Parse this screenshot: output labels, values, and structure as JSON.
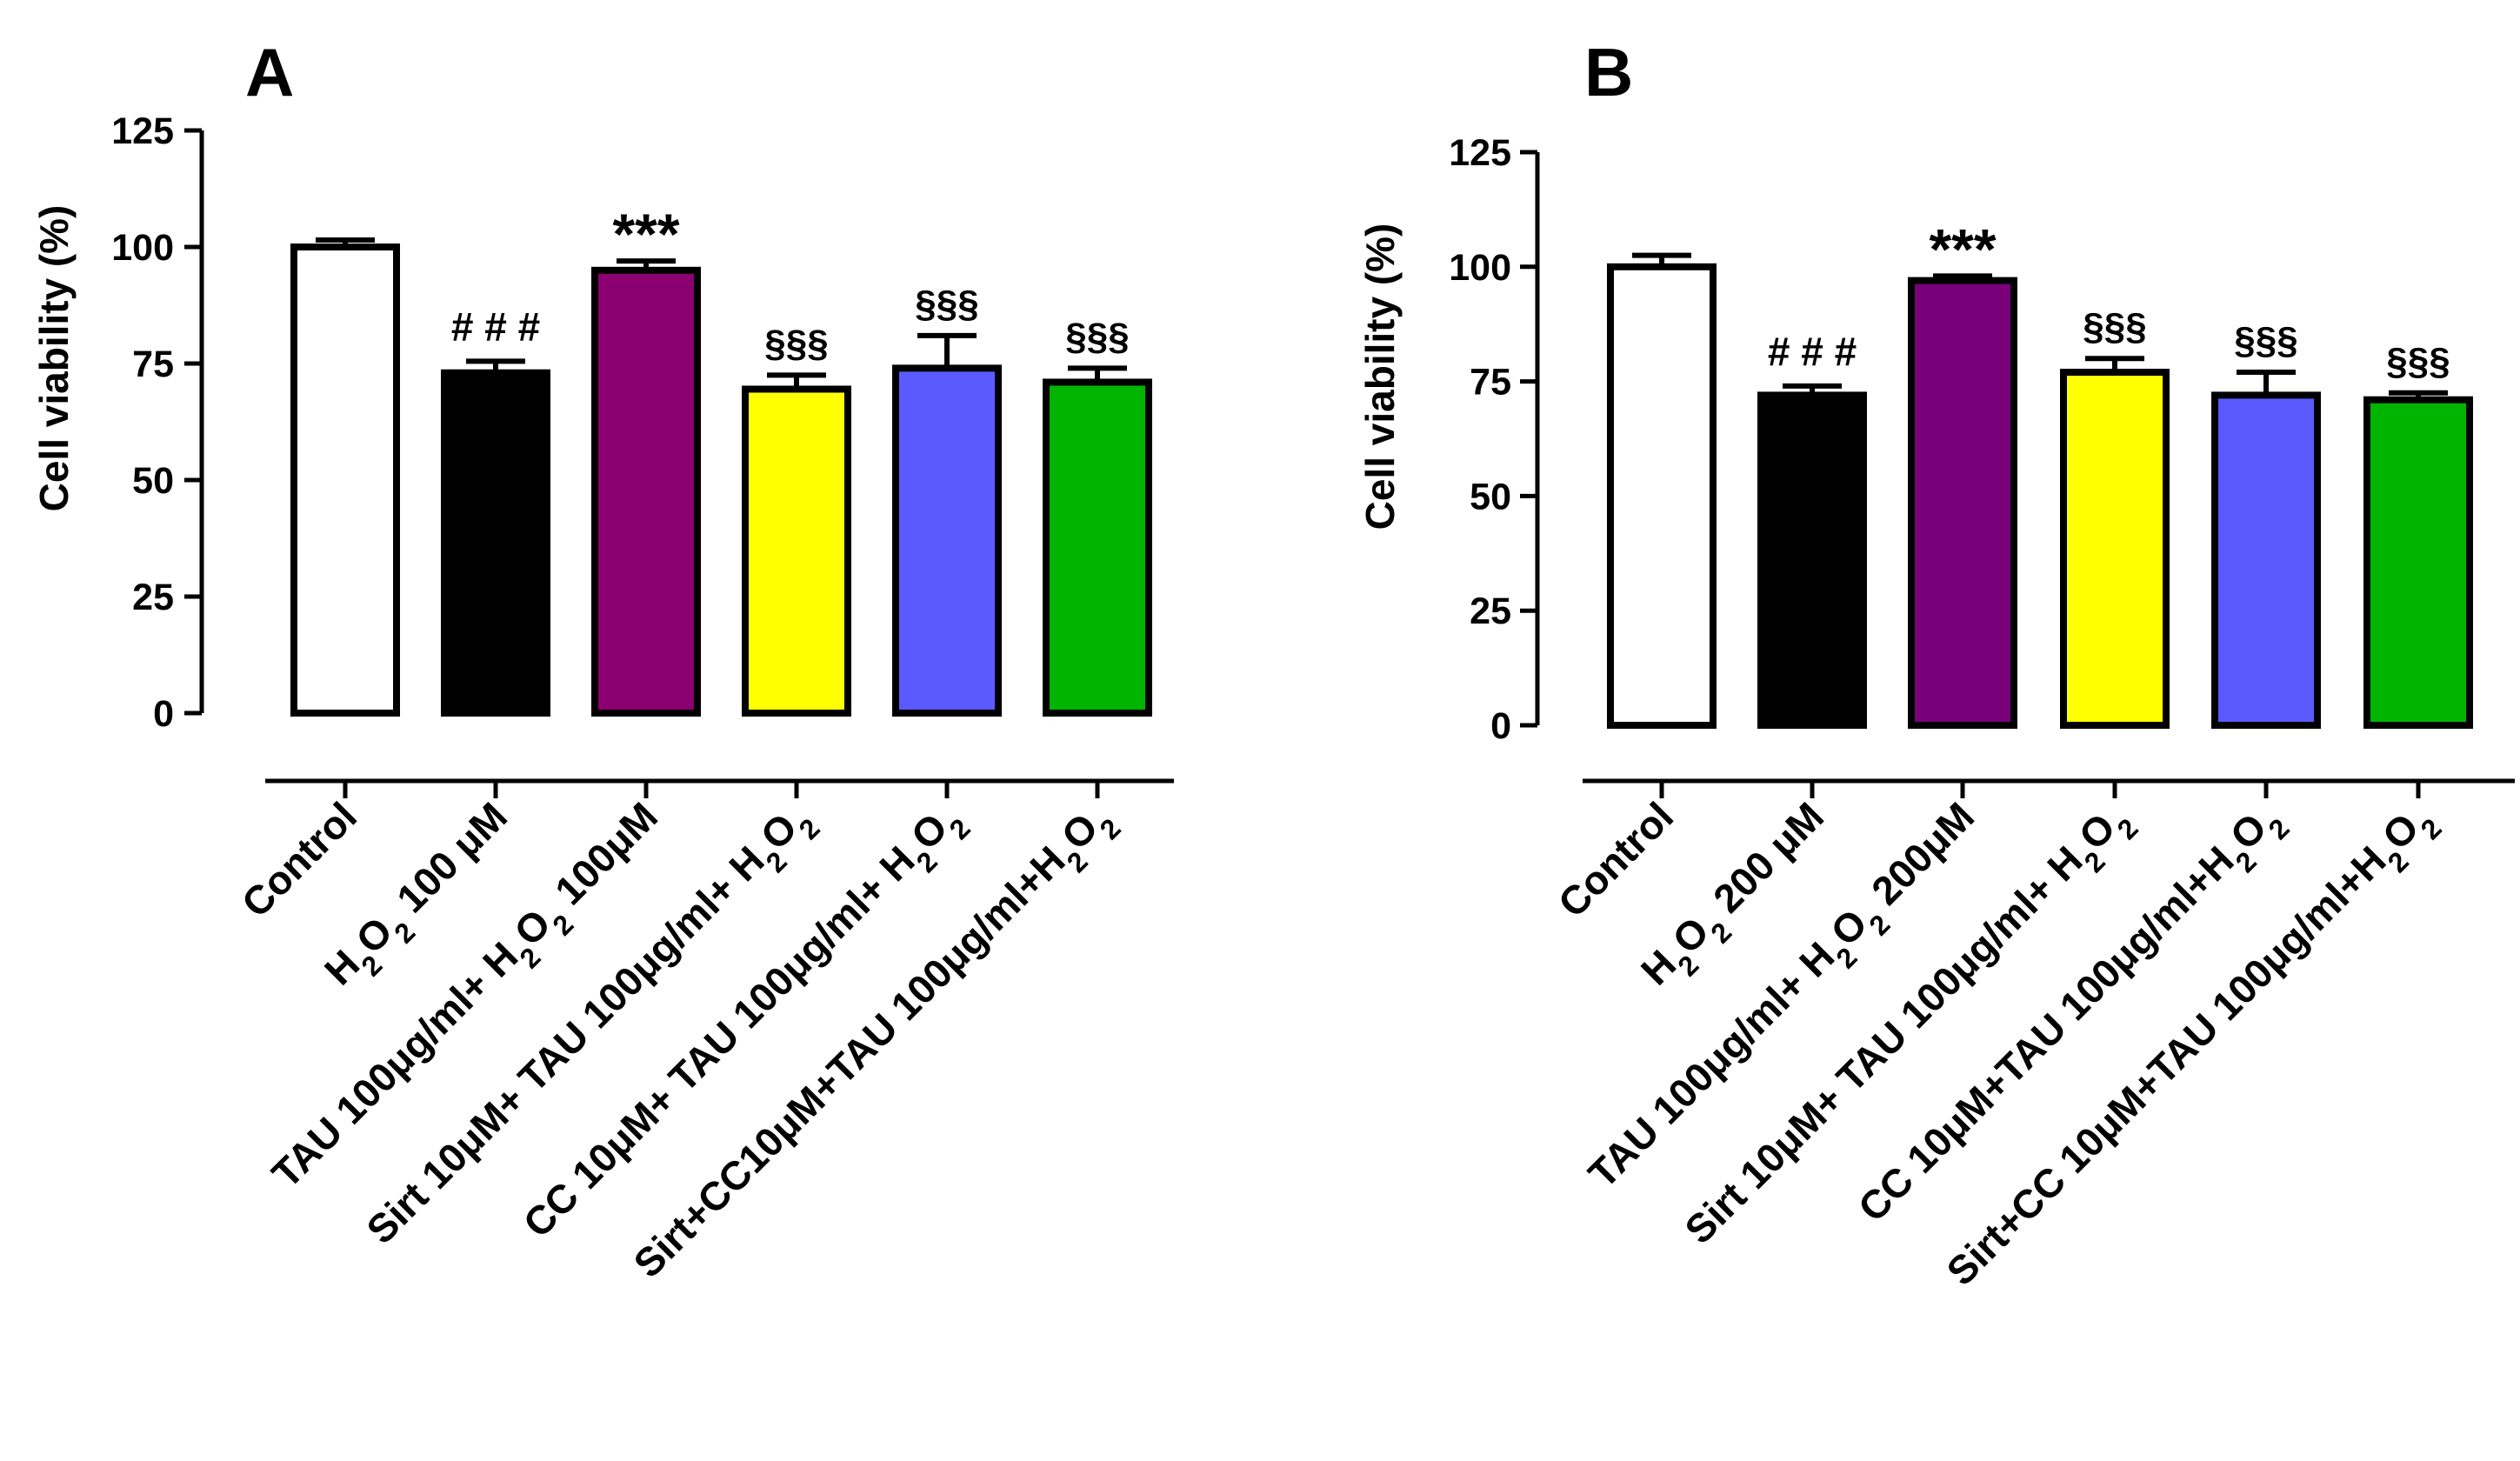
{
  "chart_data": [
    {
      "type": "bar",
      "panel": "A",
      "ylabel": "Cell viability (%)",
      "xlabel": "",
      "ylim": [
        0,
        125
      ],
      "yticks": [
        "0",
        "25",
        "50",
        "75",
        "100",
        "125"
      ],
      "categories": [
        "Control",
        "H2O2 100 μM",
        "TAU 100μg/ml+ H2O2 100μM",
        "Sirt 10μM+ TAU 100μg/ml+ H2O2",
        "CC 10μM+ TAU 100μg/ml+ H2O2",
        "Sirt+CC10μM+TAU 100μg/ml+H2O2"
      ],
      "values": [
        100,
        73,
        95,
        69.5,
        74,
        71
      ],
      "errors": [
        1.5,
        2.5,
        2,
        3,
        7,
        3
      ],
      "colors": [
        "#ffffff",
        "#000000",
        "#8b0070",
        "#ffff00",
        "#5a5aff",
        "#00b400"
      ],
      "annotations": [
        "",
        "# # #",
        "***",
        "§§§",
        "§§§",
        "§§§"
      ]
    },
    {
      "type": "bar",
      "panel": "B",
      "ylabel": "Cell viability (%)",
      "xlabel": "",
      "ylim": [
        0,
        125
      ],
      "yticks": [
        "0",
        "25",
        "50",
        "75",
        "100",
        "125"
      ],
      "categories": [
        "Control",
        "H2O2 200 μM",
        "TAU 100μg/ml+ H2O2 200μM",
        "Sirt 10μM+ TAU 100μg/ml+ H2O2",
        "CC 10μM+TAU 100μg/ml+H2O2",
        "Sirt+CC 10μM+TAU 100μg/ml+H2O2"
      ],
      "values": [
        100,
        72,
        97,
        77,
        72,
        71
      ],
      "errors": [
        2.5,
        2,
        1,
        3,
        5,
        1.5
      ],
      "colors": [
        "#ffffff",
        "#000000",
        "#7a007a",
        "#ffff00",
        "#5a5aff",
        "#00b400"
      ],
      "annotations": [
        "",
        "# # #",
        "***",
        "§§§",
        "§§§",
        "§§§"
      ]
    }
  ]
}
